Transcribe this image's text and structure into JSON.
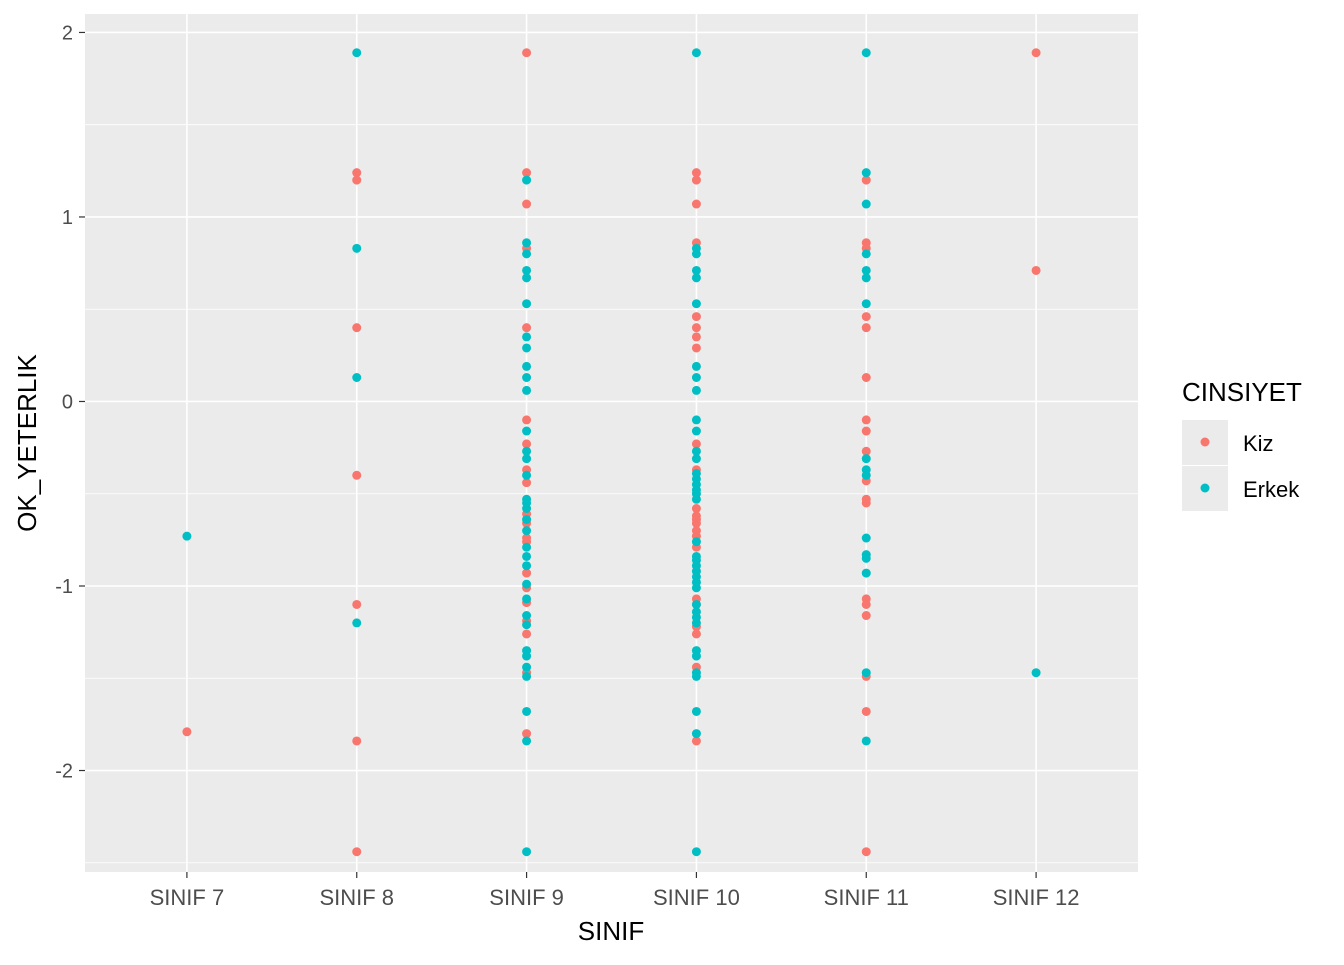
{
  "chart_data": {
    "type": "scatter",
    "title": "",
    "xlabel": "SINIF",
    "ylabel": "OK_YETERLIK",
    "categories": [
      "SINIF 7",
      "SINIF 8",
      "SINIF 9",
      "SINIF 10",
      "SINIF 11",
      "SINIF 12"
    ],
    "yticks": [
      -2,
      -1,
      0,
      1,
      2
    ],
    "ytick_labels": [
      "-2",
      "-1",
      "0",
      "1",
      "2"
    ],
    "ylim": [
      -2.55,
      2.1
    ],
    "grid": true,
    "legend": {
      "title": "CINSIYET",
      "placement": "right",
      "entries": [
        "Kiz",
        "Erkek"
      ]
    },
    "colors": {
      "Kiz": "#F8766D",
      "Erkek": "#00BFC4",
      "panel": "#EBEBEB",
      "grid": "#FFFFFF"
    },
    "series": [
      {
        "name": "Kiz",
        "points": [
          [
            "SINIF 7",
            -1.79
          ],
          [
            "SINIF 8",
            1.24
          ],
          [
            "SINIF 8",
            1.2
          ],
          [
            "SINIF 8",
            0.4
          ],
          [
            "SINIF 8",
            -0.4
          ],
          [
            "SINIF 8",
            -1.1
          ],
          [
            "SINIF 8",
            -1.84
          ],
          [
            "SINIF 8",
            -2.44
          ],
          [
            "SINIF 9",
            1.89
          ],
          [
            "SINIF 9",
            1.24
          ],
          [
            "SINIF 9",
            1.07
          ],
          [
            "SINIF 9",
            0.83
          ],
          [
            "SINIF 9",
            0.4
          ],
          [
            "SINIF 9",
            -0.1
          ],
          [
            "SINIF 9",
            -0.23
          ],
          [
            "SINIF 9",
            -0.37
          ],
          [
            "SINIF 9",
            -0.44
          ],
          [
            "SINIF 9",
            -0.61
          ],
          [
            "SINIF 9",
            -0.66
          ],
          [
            "SINIF 9",
            -0.74
          ],
          [
            "SINIF 9",
            -0.76
          ],
          [
            "SINIF 9",
            -0.93
          ],
          [
            "SINIF 9",
            -1.01
          ],
          [
            "SINIF 9",
            -1.09
          ],
          [
            "SINIF 9",
            -1.19
          ],
          [
            "SINIF 9",
            -1.26
          ],
          [
            "SINIF 9",
            -1.47
          ],
          [
            "SINIF 9",
            -1.8
          ],
          [
            "SINIF 10",
            1.24
          ],
          [
            "SINIF 10",
            1.2
          ],
          [
            "SINIF 10",
            1.07
          ],
          [
            "SINIF 10",
            0.86
          ],
          [
            "SINIF 10",
            0.46
          ],
          [
            "SINIF 10",
            0.4
          ],
          [
            "SINIF 10",
            0.35
          ],
          [
            "SINIF 10",
            0.29
          ],
          [
            "SINIF 10",
            -0.23
          ],
          [
            "SINIF 10",
            -0.37
          ],
          [
            "SINIF 10",
            -0.58
          ],
          [
            "SINIF 10",
            -0.62
          ],
          [
            "SINIF 10",
            -0.64
          ],
          [
            "SINIF 10",
            -0.66
          ],
          [
            "SINIF 10",
            -0.7
          ],
          [
            "SINIF 10",
            -0.73
          ],
          [
            "SINIF 10",
            -0.79
          ],
          [
            "SINIF 10",
            -1.07
          ],
          [
            "SINIF 10",
            -1.1
          ],
          [
            "SINIF 10",
            -1.22
          ],
          [
            "SINIF 10",
            -1.26
          ],
          [
            "SINIF 10",
            -1.44
          ],
          [
            "SINIF 10",
            -1.84
          ],
          [
            "SINIF 11",
            1.2
          ],
          [
            "SINIF 11",
            0.86
          ],
          [
            "SINIF 11",
            0.83
          ],
          [
            "SINIF 11",
            0.46
          ],
          [
            "SINIF 11",
            0.4
          ],
          [
            "SINIF 11",
            0.13
          ],
          [
            "SINIF 11",
            -0.1
          ],
          [
            "SINIF 11",
            -0.16
          ],
          [
            "SINIF 11",
            -0.27
          ],
          [
            "SINIF 11",
            -0.43
          ],
          [
            "SINIF 11",
            -0.53
          ],
          [
            "SINIF 11",
            -0.55
          ],
          [
            "SINIF 11",
            -1.07
          ],
          [
            "SINIF 11",
            -1.1
          ],
          [
            "SINIF 11",
            -1.16
          ],
          [
            "SINIF 11",
            -1.49
          ],
          [
            "SINIF 11",
            -1.68
          ],
          [
            "SINIF 11",
            -2.44
          ],
          [
            "SINIF 12",
            1.89
          ],
          [
            "SINIF 12",
            0.71
          ]
        ]
      },
      {
        "name": "Erkek",
        "points": [
          [
            "SINIF 7",
            -0.73
          ],
          [
            "SINIF 8",
            1.89
          ],
          [
            "SINIF 8",
            0.83
          ],
          [
            "SINIF 8",
            0.13
          ],
          [
            "SINIF 8",
            -1.2
          ],
          [
            "SINIF 9",
            1.2
          ],
          [
            "SINIF 9",
            0.86
          ],
          [
            "SINIF 9",
            0.8
          ],
          [
            "SINIF 9",
            0.71
          ],
          [
            "SINIF 9",
            0.67
          ],
          [
            "SINIF 9",
            0.53
          ],
          [
            "SINIF 9",
            0.35
          ],
          [
            "SINIF 9",
            0.29
          ],
          [
            "SINIF 9",
            0.19
          ],
          [
            "SINIF 9",
            0.13
          ],
          [
            "SINIF 9",
            0.06
          ],
          [
            "SINIF 9",
            -0.16
          ],
          [
            "SINIF 9",
            -0.27
          ],
          [
            "SINIF 9",
            -0.31
          ],
          [
            "SINIF 9",
            -0.4
          ],
          [
            "SINIF 9",
            -0.53
          ],
          [
            "SINIF 9",
            -0.55
          ],
          [
            "SINIF 9",
            -0.58
          ],
          [
            "SINIF 9",
            -0.64
          ],
          [
            "SINIF 9",
            -0.7
          ],
          [
            "SINIF 9",
            -0.79
          ],
          [
            "SINIF 9",
            -0.84
          ],
          [
            "SINIF 9",
            -0.89
          ],
          [
            "SINIF 9",
            -0.99
          ],
          [
            "SINIF 9",
            -1.07
          ],
          [
            "SINIF 9",
            -1.16
          ],
          [
            "SINIF 9",
            -1.21
          ],
          [
            "SINIF 9",
            -1.35
          ],
          [
            "SINIF 9",
            -1.38
          ],
          [
            "SINIF 9",
            -1.44
          ],
          [
            "SINIF 9",
            -1.49
          ],
          [
            "SINIF 9",
            -1.68
          ],
          [
            "SINIF 9",
            -1.84
          ],
          [
            "SINIF 9",
            -2.44
          ],
          [
            "SINIF 10",
            1.89
          ],
          [
            "SINIF 10",
            0.83
          ],
          [
            "SINIF 10",
            0.8
          ],
          [
            "SINIF 10",
            0.71
          ],
          [
            "SINIF 10",
            0.67
          ],
          [
            "SINIF 10",
            0.53
          ],
          [
            "SINIF 10",
            0.19
          ],
          [
            "SINIF 10",
            0.13
          ],
          [
            "SINIF 10",
            0.06
          ],
          [
            "SINIF 10",
            -0.1
          ],
          [
            "SINIF 10",
            -0.16
          ],
          [
            "SINIF 10",
            -0.27
          ],
          [
            "SINIF 10",
            -0.31
          ],
          [
            "SINIF 10",
            -0.39
          ],
          [
            "SINIF 10",
            -0.42
          ],
          [
            "SINIF 10",
            -0.45
          ],
          [
            "SINIF 10",
            -0.48
          ],
          [
            "SINIF 10",
            -0.5
          ],
          [
            "SINIF 10",
            -0.53
          ],
          [
            "SINIF 10",
            -0.76
          ],
          [
            "SINIF 10",
            -0.84
          ],
          [
            "SINIF 10",
            -0.86
          ],
          [
            "SINIF 10",
            -0.89
          ],
          [
            "SINIF 10",
            -0.92
          ],
          [
            "SINIF 10",
            -0.95
          ],
          [
            "SINIF 10",
            -0.98
          ],
          [
            "SINIF 10",
            -1.01
          ],
          [
            "SINIF 10",
            -1.1
          ],
          [
            "SINIF 10",
            -1.14
          ],
          [
            "SINIF 10",
            -1.17
          ],
          [
            "SINIF 10",
            -1.2
          ],
          [
            "SINIF 10",
            -1.35
          ],
          [
            "SINIF 10",
            -1.38
          ],
          [
            "SINIF 10",
            -1.47
          ],
          [
            "SINIF 10",
            -1.49
          ],
          [
            "SINIF 10",
            -1.68
          ],
          [
            "SINIF 10",
            -1.8
          ],
          [
            "SINIF 10",
            -2.44
          ],
          [
            "SINIF 11",
            1.89
          ],
          [
            "SINIF 11",
            1.24
          ],
          [
            "SINIF 11",
            1.07
          ],
          [
            "SINIF 11",
            0.8
          ],
          [
            "SINIF 11",
            0.71
          ],
          [
            "SINIF 11",
            0.67
          ],
          [
            "SINIF 11",
            0.53
          ],
          [
            "SINIF 11",
            -0.31
          ],
          [
            "SINIF 11",
            -0.37
          ],
          [
            "SINIF 11",
            -0.4
          ],
          [
            "SINIF 11",
            -0.74
          ],
          [
            "SINIF 11",
            -0.83
          ],
          [
            "SINIF 11",
            -0.85
          ],
          [
            "SINIF 11",
            -0.93
          ],
          [
            "SINIF 11",
            -1.47
          ],
          [
            "SINIF 11",
            -1.84
          ],
          [
            "SINIF 12",
            -1.47
          ]
        ]
      }
    ]
  }
}
